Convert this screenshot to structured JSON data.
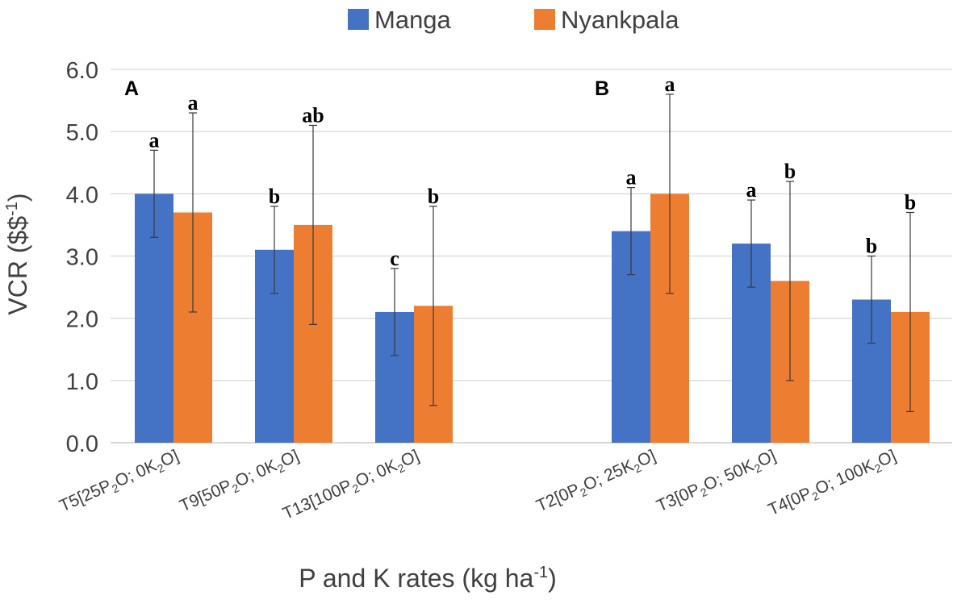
{
  "chart_data": {
    "type": "bar",
    "title": "",
    "ylabel": "VCR ($$",
    "ylabel_sup": "-1",
    "ylabel_close": ")",
    "xlabel": "P and K rates (kg ha",
    "xlabel_sup": "-1",
    "xlabel_close": ")",
    "ylim": [
      0,
      6
    ],
    "yticks": [
      "0.0",
      "1.0",
      "2.0",
      "3.0",
      "4.0",
      "5.0",
      "6.0"
    ],
    "grid": true,
    "legend_position": "top",
    "panels": [
      "A",
      "B"
    ],
    "categories": [
      {
        "parts": [
          "T5[25P",
          "2",
          "O; 0K",
          "2",
          "O]"
        ],
        "panel": "A"
      },
      {
        "parts": [
          "T9[50P",
          "2",
          "O; 0K",
          "2",
          "O]"
        ],
        "panel": "A"
      },
      {
        "parts": [
          "T13[100P",
          "2",
          "O; 0K",
          "2",
          "O]"
        ],
        "panel": "A"
      },
      {
        "parts": [
          "T2[0P",
          "2",
          "O; 25K",
          "2",
          "O]"
        ],
        "panel": "B"
      },
      {
        "parts": [
          "T3[0P",
          "2",
          "O; 50K",
          "2",
          "O]"
        ],
        "panel": "B"
      },
      {
        "parts": [
          "T4[0P",
          "2",
          "O; 100K",
          "2",
          "O]"
        ],
        "panel": "B"
      }
    ],
    "series": [
      {
        "name": "Manga",
        "color": "#4472C4",
        "values": [
          4.0,
          3.1,
          2.1,
          3.4,
          3.2,
          2.3
        ],
        "errors": [
          0.7,
          0.7,
          0.7,
          0.7,
          0.7,
          0.7
        ],
        "letters": [
          "a",
          "b",
          "c",
          "a",
          "a",
          "b"
        ]
      },
      {
        "name": "Nyankpala",
        "color": "#ED7D31",
        "values": [
          3.7,
          3.5,
          2.2,
          4.0,
          2.6,
          2.1
        ],
        "errors": [
          1.6,
          1.6,
          1.6,
          1.6,
          1.6,
          1.6
        ],
        "letters": [
          "a",
          "ab",
          "b",
          "a",
          "b",
          "b"
        ]
      }
    ]
  }
}
